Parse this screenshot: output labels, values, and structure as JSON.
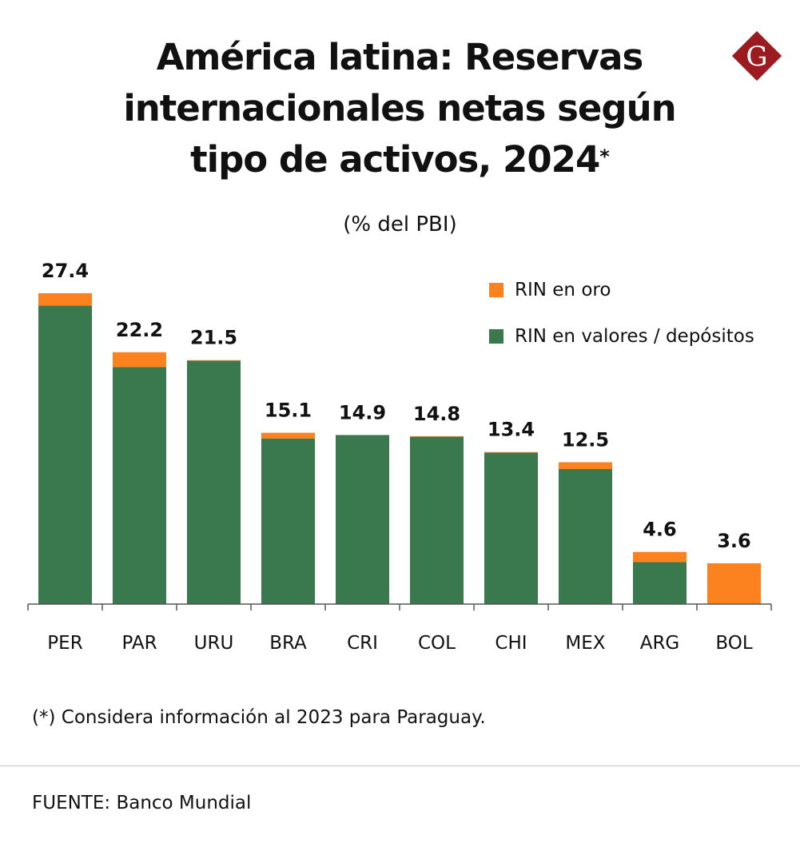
{
  "chart_data": {
    "type": "bar",
    "stacked": true,
    "title": "América latina: Reservas internacionales netas según tipo de activos, 2024",
    "title_mark": "*",
    "subtitle": "(% del PBI)",
    "categories": [
      "PER",
      "PAR",
      "URU",
      "BRA",
      "CRI",
      "COL",
      "CHI",
      "MEX",
      "ARG",
      "BOL"
    ],
    "totals": [
      "27.4",
      "22.2",
      "21.5",
      "15.1",
      "14.9",
      "14.8",
      "13.4",
      "12.5",
      "4.6",
      "3.6"
    ],
    "series": [
      {
        "name": "RIN en valores / depósitos",
        "color": "#3a784e",
        "values": [
          26.3,
          20.9,
          21.45,
          14.6,
          14.9,
          14.75,
          13.35,
          11.9,
          3.7,
          0.05
        ]
      },
      {
        "name": "RIN en oro",
        "color": "#fb821e",
        "values": [
          1.1,
          1.3,
          0.05,
          0.5,
          0.0,
          0.05,
          0.05,
          0.6,
          0.9,
          3.55
        ]
      }
    ],
    "legend_order": [
      "RIN en oro",
      "RIN en valores / depósitos"
    ],
    "ylim": [
      0,
      28
    ],
    "grid": false,
    "legend_position": "top-right",
    "xlabel": "",
    "ylabel": ""
  },
  "logo": {
    "letter": "G",
    "color": "#9b1b20"
  },
  "note": "(*) Considera información al 2023 para Paraguay.",
  "source": "FUENTE: Banco Mundial"
}
